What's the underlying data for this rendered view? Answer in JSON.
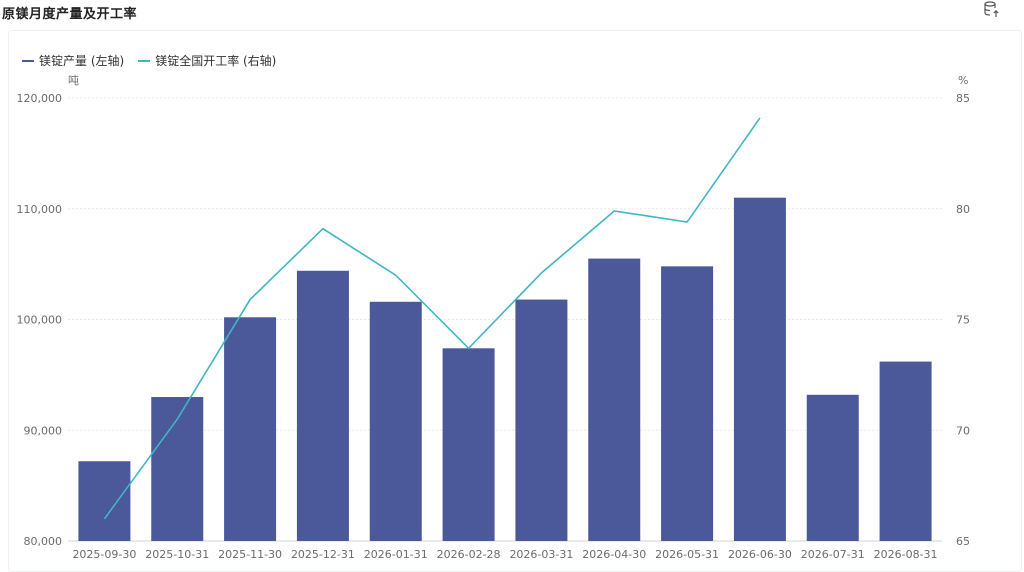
{
  "title": "原镁月度产量及开工率",
  "toolbar": {
    "export_icon": "database-export-icon"
  },
  "colors": {
    "bar": "#4b5899",
    "line": "#3fb6c6",
    "grid": "#e6e8ec",
    "axis_text": "#6b6b6b"
  },
  "chart_data": {
    "type": "bar+line",
    "categories": [
      "2025-09-30",
      "2025-10-31",
      "2025-11-30",
      "2025-12-31",
      "2026-01-31",
      "2026-02-28",
      "2026-03-31",
      "2026-04-30",
      "2026-05-31",
      "2026-06-30",
      "2026-07-31",
      "2026-08-31"
    ],
    "series": [
      {
        "name": "镁锭产量 (左轴)",
        "type": "bar",
        "axis": "left",
        "values": [
          87200,
          93000,
          100200,
          104400,
          101600,
          97400,
          101800,
          105500,
          104800,
          111000,
          93200,
          96200
        ]
      },
      {
        "name": "镁锭全国开工率 (右轴)",
        "type": "line",
        "axis": "right",
        "values": [
          66.0,
          70.5,
          75.9,
          79.1,
          77.0,
          73.7,
          77.1,
          79.9,
          79.4,
          84.1,
          null,
          null
        ]
      }
    ],
    "left_axis": {
      "unit": "吨",
      "min": 80000,
      "max": 120000,
      "ticks": [
        "80,000",
        "90,000",
        "100,000",
        "110,000",
        "120,000"
      ],
      "tick_values": [
        80000,
        90000,
        100000,
        110000,
        120000
      ]
    },
    "right_axis": {
      "unit": "%",
      "min": 65,
      "max": 85,
      "ticks": [
        "65",
        "70",
        "75",
        "80",
        "85"
      ],
      "tick_values": [
        65,
        70,
        75,
        80,
        85
      ]
    },
    "grid": true,
    "legend_position": "top-left"
  }
}
